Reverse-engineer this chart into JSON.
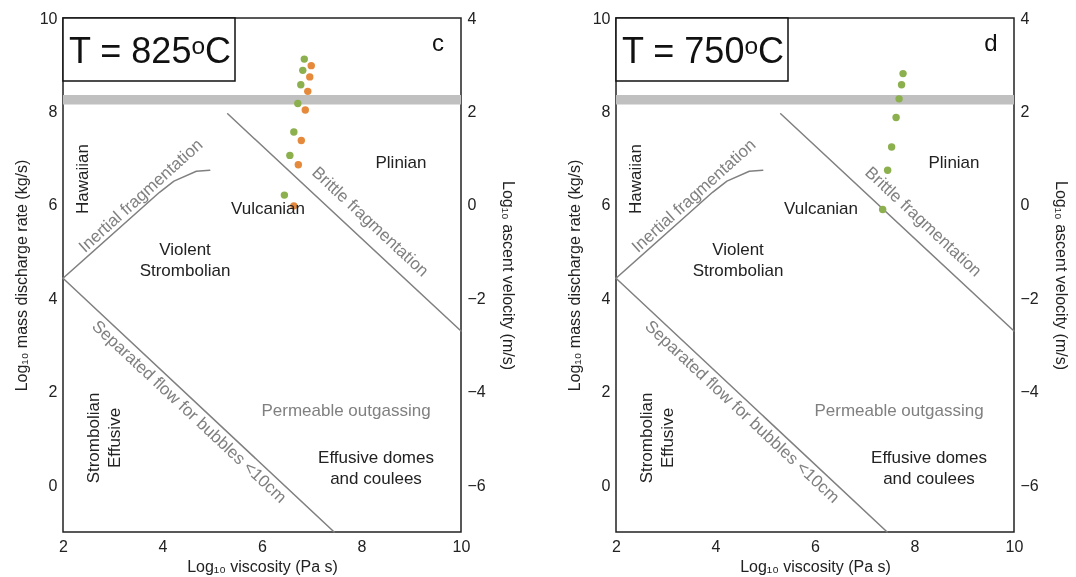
{
  "chart_data": [
    {
      "type": "scatter",
      "xlabel": "Log₁₀ viscosity (Pa s)",
      "ylabel": "Log₁₀ mass discharge rate (kg/s)",
      "y2label": "Log₁₀ ascent velocity (m/s)",
      "xlim": [
        2,
        10
      ],
      "xticks": [
        2,
        4,
        6,
        8,
        10
      ],
      "ylim": [
        -1,
        10
      ],
      "yticks": [
        0,
        2,
        4,
        6,
        8,
        10
      ],
      "y2lim": [
        -7,
        4
      ],
      "y2ticks": [
        -6,
        -4,
        -2,
        0,
        2,
        4
      ],
      "marker": "circle",
      "bands": [
        {
          "axis": "y",
          "from": 8.15,
          "to": 8.35,
          "color": "#c0c0c0"
        }
      ],
      "series": [
        {
          "type": "line",
          "color": "#808080",
          "marker": "none",
          "x": [
            5.31,
            10
          ],
          "values": [
            7.95,
            3.3
          ]
        },
        {
          "type": "line",
          "color": "#808080",
          "marker": "none",
          "x": [
            2,
            3.94,
            4.23,
            4.68,
            4.95
          ],
          "values": [
            4.43,
            6.27,
            6.51,
            6.72,
            6.74
          ]
        },
        {
          "type": "line",
          "color": "#808080",
          "marker": "none",
          "x": [
            2,
            7.45
          ],
          "values": [
            4.43,
            -1
          ]
        },
        {
          "type": "scatter",
          "color": "#8cb04e",
          "x": [
            6.85,
            6.82,
            6.78,
            6.72,
            6.64,
            6.56,
            6.45
          ],
          "values": [
            9.12,
            8.88,
            8.57,
            8.17,
            7.56,
            7.06,
            6.21
          ]
        },
        {
          "type": "scatter",
          "color": "#e58a3c",
          "x": [
            6.99,
            6.96,
            6.92,
            6.87,
            6.79,
            6.73,
            6.64
          ],
          "values": [
            8.98,
            8.74,
            8.43,
            8.03,
            7.38,
            6.86,
            5.98
          ]
        }
      ],
      "annotations": [
        "T = 825ᵒC",
        "c",
        "Hawaiian",
        "Inertial fragmentation",
        "Violent\nStrombolian",
        "Vulcanian",
        "Plinian",
        "Brittle fragmentation",
        "Separated flow for bubbles <10cm",
        "Permeable outgassing",
        "Effusive domes\nand coulees",
        "Strombolian\nEffusive"
      ]
    },
    {
      "type": "scatter",
      "xlabel": "Log₁₀ viscosity (Pa s)",
      "ylabel": "Log₁₀ mass discharge rate (kg/s)",
      "y2label": "Log₁₀ ascent velocity (m/s)",
      "xlim": [
        2,
        10
      ],
      "xticks": [
        2,
        4,
        6,
        8,
        10
      ],
      "ylim": [
        -1,
        10
      ],
      "yticks": [
        0,
        2,
        4,
        6,
        8,
        10
      ],
      "y2lim": [
        -7,
        4
      ],
      "y2ticks": [
        -6,
        -4,
        -2,
        0,
        2,
        4
      ],
      "marker": "circle",
      "bands": [
        {
          "axis": "y",
          "from": 8.15,
          "to": 8.35,
          "color": "#c0c0c0"
        }
      ],
      "series": [
        {
          "type": "line",
          "color": "#808080",
          "marker": "none",
          "x": [
            5.31,
            10
          ],
          "values": [
            7.95,
            3.3
          ]
        },
        {
          "type": "line",
          "color": "#808080",
          "marker": "none",
          "x": [
            2,
            3.94,
            4.23,
            4.68,
            4.95
          ],
          "values": [
            4.43,
            6.27,
            6.51,
            6.72,
            6.74
          ]
        },
        {
          "type": "line",
          "color": "#808080",
          "marker": "none",
          "x": [
            2,
            7.45
          ],
          "values": [
            4.43,
            -1
          ]
        },
        {
          "type": "scatter",
          "color": "#8cb04e",
          "x": [
            7.77,
            7.74,
            7.69,
            7.63,
            7.54,
            7.46,
            7.36
          ],
          "values": [
            8.81,
            8.57,
            8.27,
            7.87,
            7.24,
            6.74,
            5.9
          ]
        }
      ],
      "annotations": [
        "T = 750ᵒC",
        "d",
        "Hawaiian",
        "Inertial fragmentation",
        "Violent\nStrombolian",
        "Vulcanian",
        "Plinian",
        "Brittle fragmentation",
        "Separated flow for bubbles <10cm",
        "Permeable outgassing",
        "Effusive domes\nand coulees",
        "Strombolian\nEffusive"
      ]
    }
  ]
}
